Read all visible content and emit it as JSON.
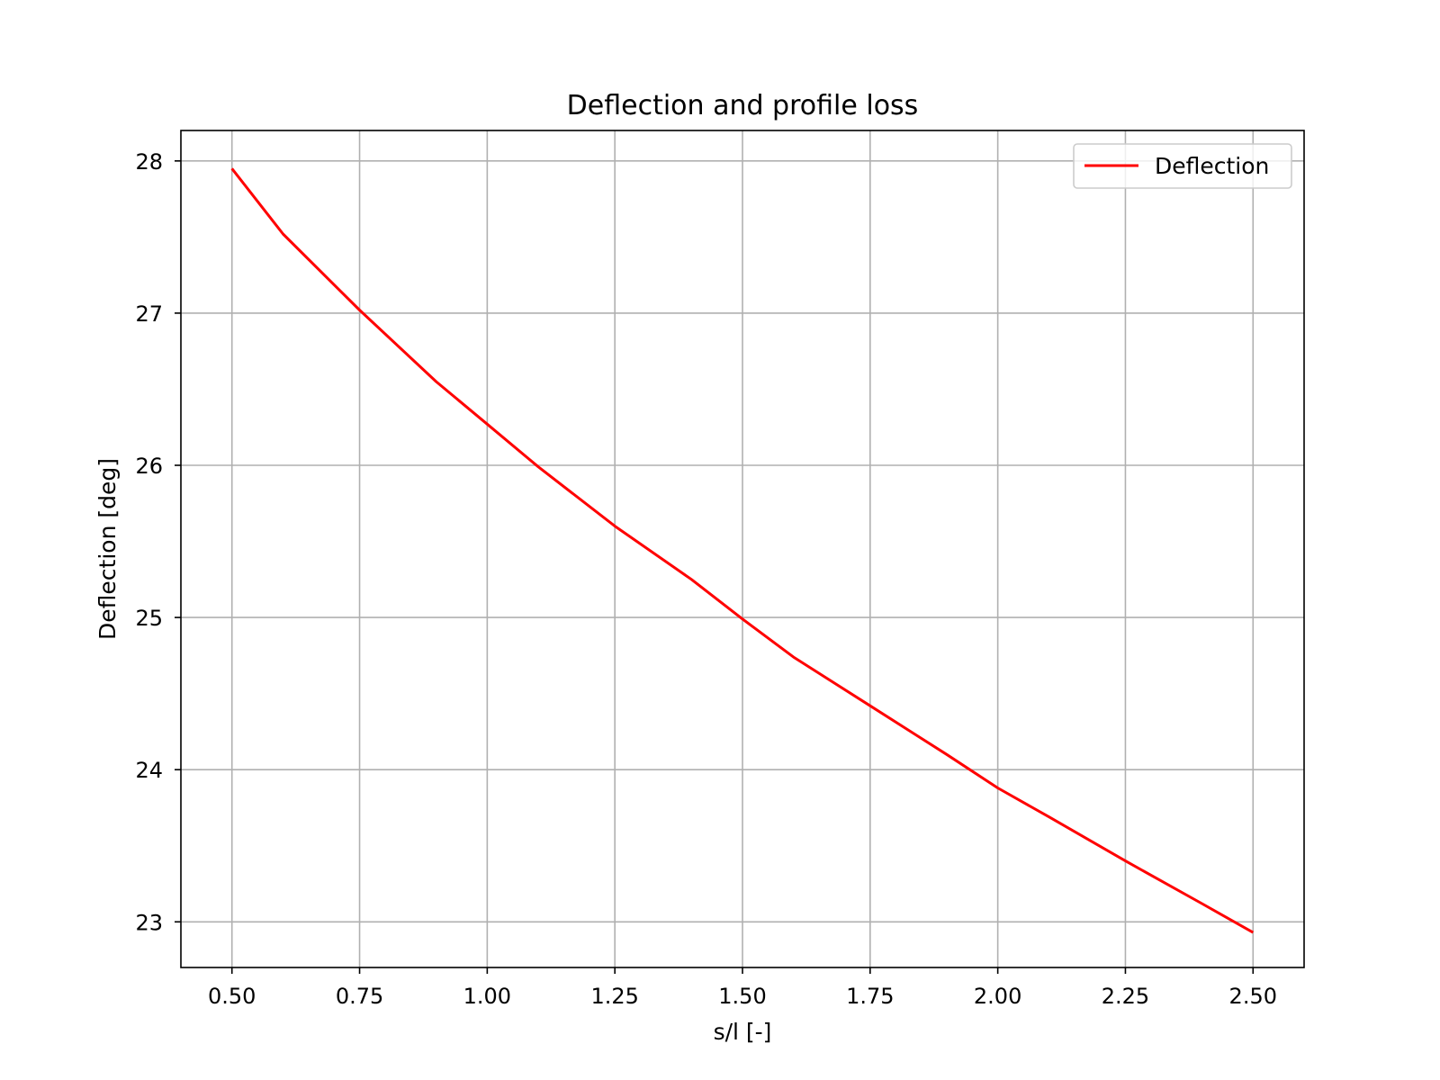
{
  "chart_data": {
    "type": "line",
    "title": "Deflection and profile loss",
    "xlabel": "s/l [-]",
    "ylabel": "Deflection [deg]",
    "xlim": [
      0.4,
      2.6
    ],
    "ylim": [
      22.7,
      28.2
    ],
    "xticks": [
      0.5,
      0.75,
      1.0,
      1.25,
      1.5,
      1.75,
      2.0,
      2.25,
      2.5
    ],
    "xtick_labels": [
      "0.50",
      "0.75",
      "1.00",
      "1.25",
      "1.50",
      "1.75",
      "2.00",
      "2.25",
      "2.50"
    ],
    "yticks": [
      23,
      24,
      25,
      26,
      27,
      28
    ],
    "ytick_labels": [
      "23",
      "24",
      "25",
      "26",
      "27",
      "28"
    ],
    "grid": true,
    "legend_position": "top-right",
    "series": [
      {
        "name": "Deflection",
        "color": "#ff0000",
        "x": [
          0.5,
          0.6,
          0.75,
          0.9,
          1.0,
          1.1,
          1.25,
          1.4,
          1.5,
          1.6,
          1.75,
          1.9,
          2.0,
          2.1,
          2.25,
          2.4,
          2.5
        ],
        "y": [
          27.95,
          27.52,
          27.02,
          26.55,
          26.27,
          25.99,
          25.6,
          25.25,
          24.99,
          24.74,
          24.42,
          24.1,
          23.88,
          23.69,
          23.4,
          23.12,
          22.93
        ]
      }
    ]
  }
}
